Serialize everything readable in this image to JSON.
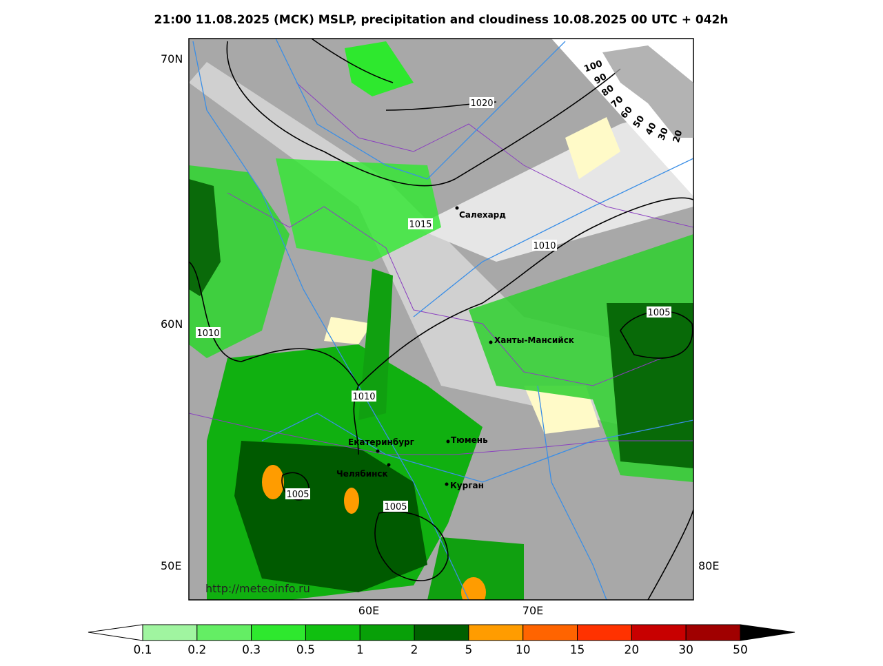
{
  "title": "21:00 11.08.2025 (МСК) MSLP, precipitation and cloudiness 10.08.2025 00 UTC + 042h",
  "lat_labels": [
    "70N",
    "60N"
  ],
  "lon_labels": [
    "50E",
    "60E",
    "70E",
    "80E"
  ],
  "isobar_labels": [
    1020,
    1015,
    1010,
    1010,
    1010,
    1005,
    1005,
    1005
  ],
  "cities": [
    "Салехард",
    "Ханты-Мансийск",
    "Екатеринбург",
    "Тюмень",
    "Челябинск",
    "Курган"
  ],
  "cloudiness_scale": [
    100,
    90,
    80,
    70,
    60,
    50,
    40,
    30,
    20
  ],
  "precipitation_scale": {
    "labels": [
      0.1,
      0.2,
      0.3,
      0.5,
      1,
      2,
      5,
      10,
      15,
      20,
      30,
      50
    ],
    "colors": [
      "#a0f5a0",
      "#64ee64",
      "#2ee82e",
      "#10c010",
      "#08a008",
      "#006000",
      "#ff9c00",
      "#ff6400",
      "#ff3200",
      "#c80000",
      "#a00000"
    ]
  },
  "watermark": "http://meteoinfo.ru"
}
